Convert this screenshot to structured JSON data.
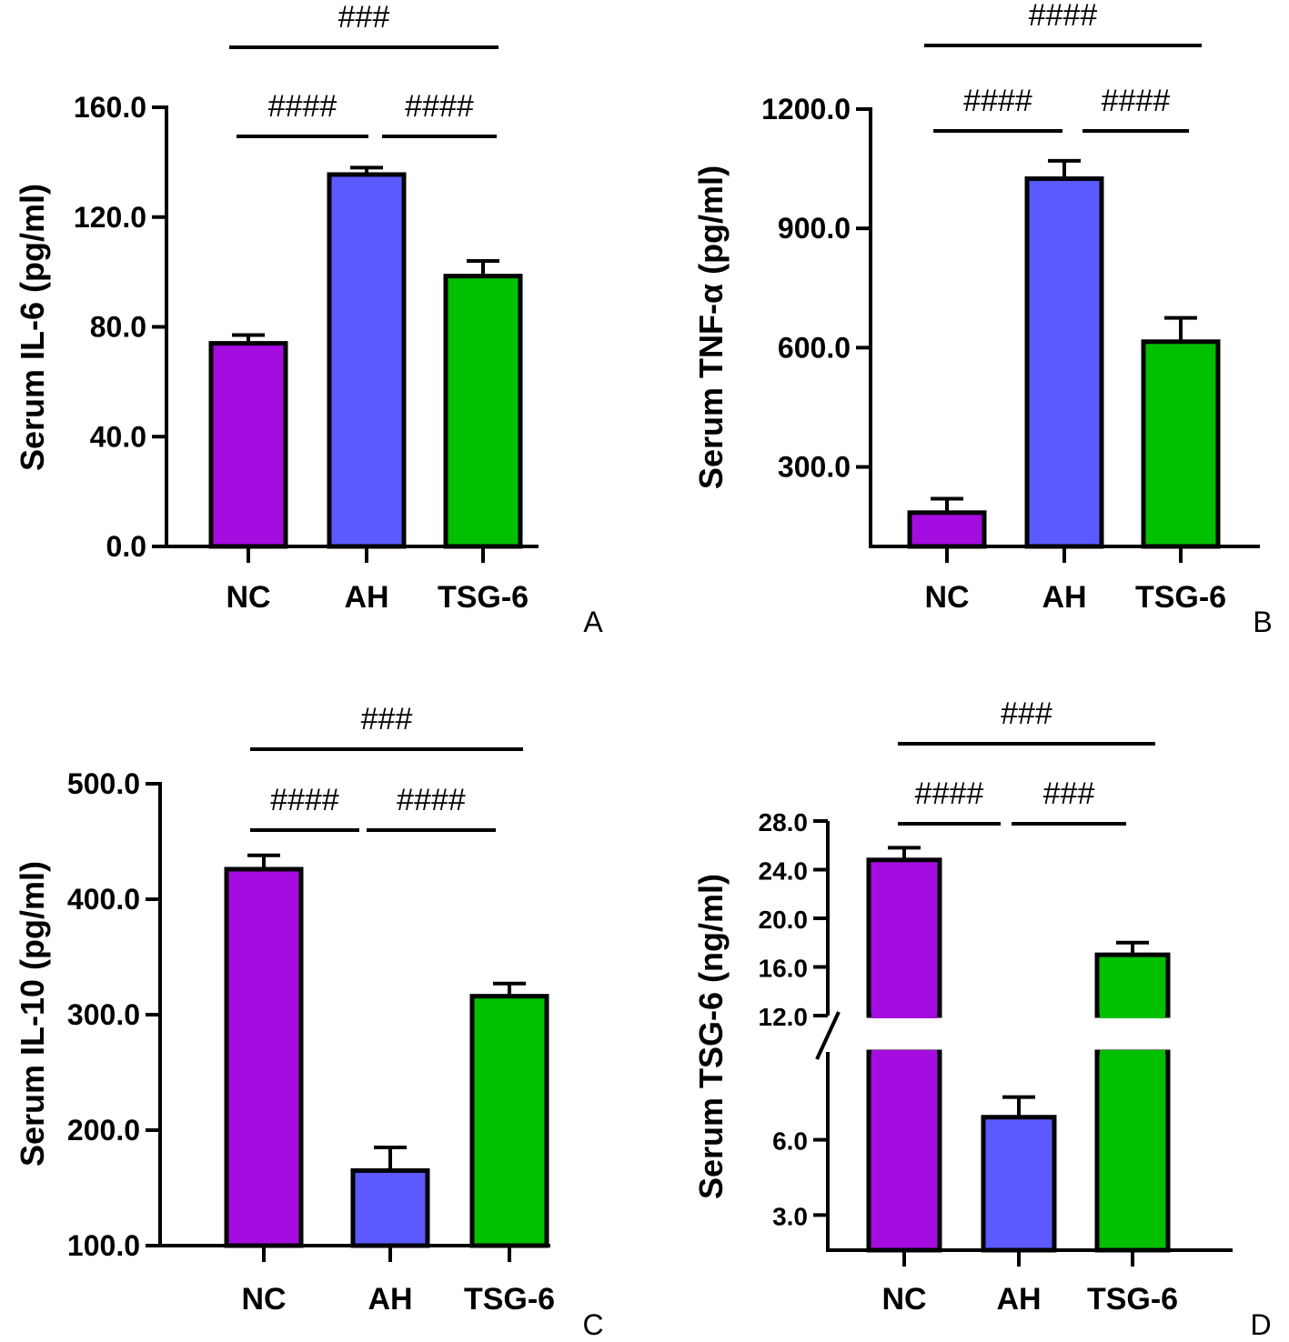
{
  "colors": {
    "NC": "#a50ce0",
    "AH": "#5a5aff",
    "TSG-6": "#00c000",
    "axis": "#000000"
  },
  "chart_data": [
    {
      "panel": "A",
      "type": "bar",
      "ylabel": "Serum IL-6 (pg/ml)",
      "categories": [
        "NC",
        "AH",
        "TSG-6"
      ],
      "values": [
        74,
        135.5,
        98.5
      ],
      "errors": [
        3,
        2.5,
        5.5
      ],
      "ylim": [
        0,
        160
      ],
      "yticks": [
        0,
        40,
        80,
        120,
        160
      ],
      "ytick_labels": [
        "0.0",
        "40.0",
        "80.0",
        "120.0",
        "160.0"
      ],
      "comparisons": [
        {
          "from": "NC",
          "to": "AH",
          "label": "####"
        },
        {
          "from": "AH",
          "to": "TSG-6",
          "label": "####"
        },
        {
          "from": "NC",
          "to": "TSG-6",
          "label": "###"
        }
      ]
    },
    {
      "panel": "B",
      "type": "bar",
      "ylabel": "Serum TNF-α (pg/ml)",
      "categories": [
        "NC",
        "AH",
        "TSG-6"
      ],
      "values": [
        185,
        1025,
        615
      ],
      "errors": [
        35,
        45,
        60
      ],
      "ylim": [
        100,
        1200
      ],
      "yticks": [
        300,
        600,
        900,
        1200
      ],
      "ytick_labels": [
        "300.0",
        "600.0",
        "900.0",
        "1200.0"
      ],
      "comparisons": [
        {
          "from": "NC",
          "to": "AH",
          "label": "####"
        },
        {
          "from": "AH",
          "to": "TSG-6",
          "label": "####"
        },
        {
          "from": "NC",
          "to": "TSG-6",
          "label": "####"
        }
      ]
    },
    {
      "panel": "C",
      "type": "bar",
      "ylabel": "Serum IL-10 (pg/ml)",
      "categories": [
        "NC",
        "AH",
        "TSG-6"
      ],
      "values": [
        426,
        165,
        316
      ],
      "errors": [
        12,
        20,
        11
      ],
      "ylim": [
        100,
        500
      ],
      "yticks": [
        100,
        200,
        300,
        400,
        500
      ],
      "ytick_labels": [
        "100.0",
        "200.0",
        "300.0",
        "400.0",
        "500.0"
      ],
      "comparisons": [
        {
          "from": "NC",
          "to": "AH",
          "label": "####"
        },
        {
          "from": "AH",
          "to": "TSG-6",
          "label": "####"
        },
        {
          "from": "NC",
          "to": "TSG-6",
          "label": "###"
        }
      ]
    },
    {
      "panel": "D",
      "type": "bar",
      "ylabel": "Serum TSG-6 (ng/ml)",
      "categories": [
        "NC",
        "AH",
        "TSG-6"
      ],
      "values": [
        24.8,
        6.9,
        17.0
      ],
      "errors": [
        1.0,
        0.8,
        1.0
      ],
      "ylim": [
        1.5,
        28
      ],
      "axis_break": [
        9.5,
        12
      ],
      "yticks": [
        3,
        6,
        12,
        16,
        20,
        24,
        28
      ],
      "ytick_labels": [
        "3.0",
        "6.0",
        "12.0",
        "16.0",
        "20.0",
        "24.0",
        "28.0"
      ],
      "comparisons": [
        {
          "from": "NC",
          "to": "AH",
          "label": "####"
        },
        {
          "from": "AH",
          "to": "TSG-6",
          "label": "###"
        },
        {
          "from": "NC",
          "to": "TSG-6",
          "label": "###"
        }
      ]
    }
  ]
}
